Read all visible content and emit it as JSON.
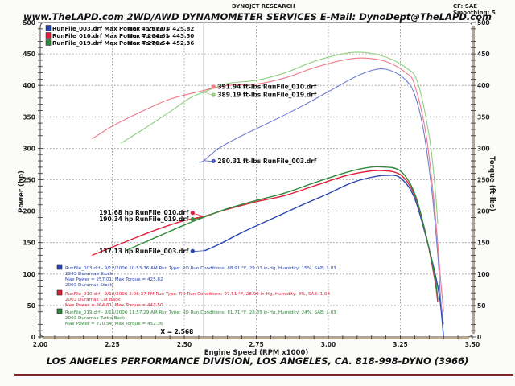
{
  "header": {
    "brand": "DYNOJET RESEARCH",
    "settings": "CF: SAE  Smoothing: 5",
    "title": "www.TheLAPD.com 2WD/AWD DYNAMOMETER SERVICES E-Mail: DynoDept@TheLAPD.com"
  },
  "footer": {
    "text": "LOS ANGELES PERFORMANCE DIVISION, LOS ANGELES, CA. 818-998-DYNO (3966)"
  },
  "cursor": {
    "x_label": "X = 2.568",
    "rpm": 2.568
  },
  "colors": {
    "run003": "#2a45b0",
    "run010": "#e0203a",
    "run019": "#2f8a3a",
    "run003_light": "#6f7fd0",
    "run010_light": "#f07a88",
    "run019_light": "#8fcf80"
  },
  "top_legend": [
    {
      "file": "RunFile_003.drf",
      "power": "Max Power = 257.01",
      "torque": "Max Torque = 425.82",
      "color": "#2a45b0"
    },
    {
      "file": "RunFile_010.drf",
      "power": "Max Power = 264.61",
      "torque": "Max Torque = 443.50",
      "color": "#e0203a"
    },
    {
      "file": "RunFile_019.drf",
      "power": "Max Power = 270.54",
      "torque": "Max Torque = 452.36",
      "color": "#2f8a3a"
    }
  ],
  "run_details": [
    {
      "line1": "RunFile_003.drf - 9/12/2006 10:53:36 AM  Run Type: RO  Run Conditions: 88.91 °F, 29.01 in-Hg,  Humidity:  15%, SAE: 1.03",
      "line2": "2003 Duramax Stock",
      "line3": "Max Power = 257.01; Max Torque = 425.82",
      "line4": "2003 Duramax Stock",
      "color": "#2a45b0"
    },
    {
      "line1": "RunFile_010.drf - 9/12/2006 2:06:37 PM  Run Type: RO  Run Conditions: 97.51 °F, 28.99 in-Hg,  Humidity:  8%, SAE: 1.04",
      "line2": "2003 Duramax Cat Back",
      "line3": "Max Power = 264.61; Max Torque = 443.50",
      "line4": "",
      "color": "#e0203a"
    },
    {
      "line1": "RunFile_019.drf - 9/15/2006 11:57:29 AM  Run Type: RO  Run Conditions: 81.71 °F, 28.85 in-Hg,  Humidity:  24%, SAE: 1.03",
      "line2": "2003 Duramax Turbo Back",
      "line3": "Max Power = 270.54; Max Torque = 452.36",
      "line4": "",
      "color": "#2f8a3a"
    }
  ],
  "cursor_labels": [
    {
      "text": "391.94 ft-lbs RunFile_010.drf",
      "series": "torque_010",
      "value": 391.94,
      "color": "#f07a88"
    },
    {
      "text": "389.19 ft-lbs RunFile_019.drf",
      "series": "torque_019",
      "value": 389.19,
      "color": "#8fcf80"
    },
    {
      "text": "280.31 ft-lbs RunFile_003.drf",
      "series": "torque_003",
      "value": 280.31,
      "color": "#4a5fc0"
    },
    {
      "text": "191.68 hp RunFile_010.drf",
      "series": "power_010",
      "value": 191.68,
      "color": "#e0203a"
    },
    {
      "text": "190.34 hp RunFile_019.drf",
      "series": "power_019",
      "value": 190.34,
      "color": "#2f8a3a"
    },
    {
      "text": "137.13 hp RunFile_003.drf",
      "series": "power_003",
      "value": 137.13,
      "color": "#2a45b0"
    }
  ],
  "chart_data": {
    "type": "line",
    "title": "www.TheLAPD.com 2WD/AWD DYNAMOMETER SERVICES E-Mail: DynoDept@TheLAPD.com",
    "xlabel": "Engine Speed (RPM x1000)",
    "ylabel": "Power (hp)",
    "y2label": "Torque (ft-lbs)",
    "xlim": [
      2.0,
      3.5
    ],
    "ylim": [
      0,
      500
    ],
    "y2lim": [
      0,
      500
    ],
    "xticks": [
      "2.00",
      "2.25",
      "2.50",
      "2.75",
      "3.00",
      "3.25",
      "3.50"
    ],
    "yticks": [
      "0",
      "50",
      "100",
      "150",
      "200",
      "250",
      "300",
      "350",
      "400",
      "450",
      "500"
    ],
    "grid": true,
    "legend_position": "top-left",
    "series": [
      {
        "name": "RunFile_003.drf Power (hp)",
        "axis": "left",
        "color": "#2a45b0",
        "points": [
          [
            2.57,
            137
          ],
          [
            2.62,
            147
          ],
          [
            2.7,
            166
          ],
          [
            2.8,
            187
          ],
          [
            2.9,
            208
          ],
          [
            3.0,
            228
          ],
          [
            3.08,
            245
          ],
          [
            3.15,
            254
          ],
          [
            3.2,
            257
          ],
          [
            3.25,
            253
          ],
          [
            3.3,
            220
          ],
          [
            3.35,
            140
          ],
          [
            3.38,
            80
          ],
          [
            3.39,
            50
          ],
          [
            3.4,
            0
          ]
        ]
      },
      {
        "name": "RunFile_010.drf Power (hp)",
        "axis": "left",
        "color": "#e0203a",
        "points": [
          [
            2.18,
            130
          ],
          [
            2.3,
            152
          ],
          [
            2.4,
            170
          ],
          [
            2.5,
            185
          ],
          [
            2.568,
            191.68
          ],
          [
            2.65,
            203
          ],
          [
            2.75,
            215
          ],
          [
            2.85,
            225
          ],
          [
            2.95,
            240
          ],
          [
            3.05,
            255
          ],
          [
            3.12,
            262
          ],
          [
            3.18,
            264.6
          ],
          [
            3.25,
            258
          ],
          [
            3.3,
            225
          ],
          [
            3.34,
            160
          ],
          [
            3.37,
            90
          ],
          [
            3.38,
            55
          ]
        ]
      },
      {
        "name": "RunFile_019.drf Power (hp)",
        "axis": "left",
        "color": "#2f8a3a",
        "points": [
          [
            2.3,
            138
          ],
          [
            2.4,
            158
          ],
          [
            2.5,
            178
          ],
          [
            2.568,
            190.34
          ],
          [
            2.65,
            204
          ],
          [
            2.75,
            217
          ],
          [
            2.85,
            229
          ],
          [
            2.95,
            245
          ],
          [
            3.05,
            260
          ],
          [
            3.12,
            268
          ],
          [
            3.18,
            270.5
          ],
          [
            3.25,
            264
          ],
          [
            3.3,
            228
          ],
          [
            3.34,
            160
          ],
          [
            3.37,
            95
          ],
          [
            3.38,
            60
          ]
        ]
      },
      {
        "name": "RunFile_003.drf Torque (ft-lbs)",
        "axis": "right",
        "color": "#6f7fd0",
        "points": [
          [
            2.55,
            278
          ],
          [
            2.568,
            280.31
          ],
          [
            2.62,
            300
          ],
          [
            2.7,
            320
          ],
          [
            2.8,
            342
          ],
          [
            2.9,
            365
          ],
          [
            3.0,
            390
          ],
          [
            3.1,
            415
          ],
          [
            3.17,
            425.8
          ],
          [
            3.22,
            423
          ],
          [
            3.27,
            408
          ],
          [
            3.3,
            385
          ],
          [
            3.33,
            330
          ],
          [
            3.36,
            230
          ],
          [
            3.38,
            130
          ],
          [
            3.39,
            60
          ],
          [
            3.4,
            20
          ]
        ]
      },
      {
        "name": "RunFile_010.drf Torque (ft-lbs)",
        "axis": "right",
        "color": "#f07a88",
        "points": [
          [
            2.18,
            315
          ],
          [
            2.25,
            335
          ],
          [
            2.35,
            358
          ],
          [
            2.45,
            378
          ],
          [
            2.568,
            391.94
          ],
          [
            2.65,
            400
          ],
          [
            2.75,
            402
          ],
          [
            2.85,
            412
          ],
          [
            2.95,
            428
          ],
          [
            3.05,
            440
          ],
          [
            3.12,
            443.5
          ],
          [
            3.2,
            438
          ],
          [
            3.27,
            420
          ],
          [
            3.3,
            400
          ],
          [
            3.34,
            320
          ],
          [
            3.37,
            200
          ],
          [
            3.39,
            90
          ],
          [
            3.4,
            40
          ]
        ]
      },
      {
        "name": "RunFile_019.drf Torque (ft-lbs)",
        "axis": "right",
        "color": "#8fcf80",
        "points": [
          [
            2.28,
            308
          ],
          [
            2.35,
            328
          ],
          [
            2.45,
            358
          ],
          [
            2.52,
            380
          ],
          [
            2.568,
            389.19
          ],
          [
            2.65,
            403
          ],
          [
            2.75,
            408
          ],
          [
            2.85,
            420
          ],
          [
            2.95,
            438
          ],
          [
            3.05,
            450
          ],
          [
            3.12,
            452.4
          ],
          [
            3.2,
            445
          ],
          [
            3.27,
            428
          ],
          [
            3.31,
            405
          ],
          [
            3.35,
            320
          ],
          [
            3.37,
            240
          ],
          [
            3.38,
            180
          ]
        ]
      }
    ]
  }
}
